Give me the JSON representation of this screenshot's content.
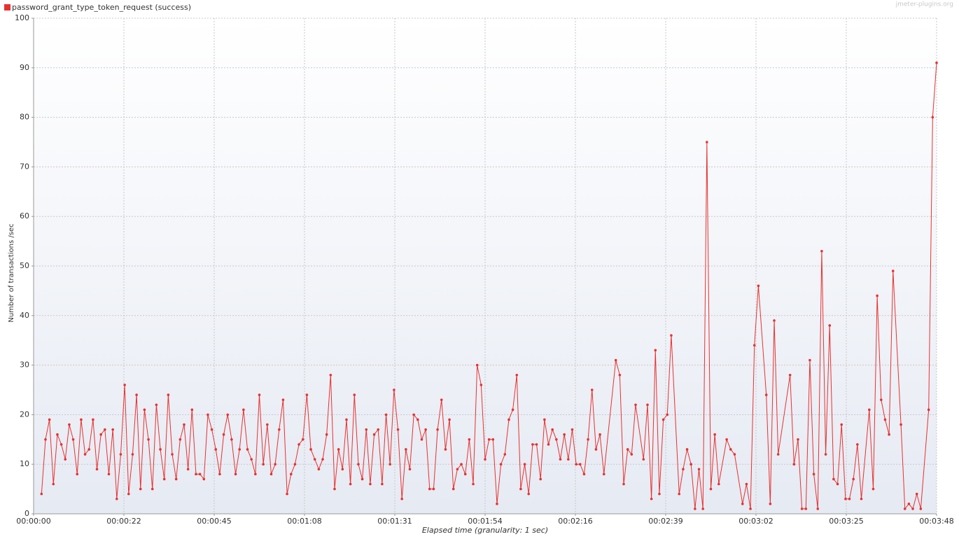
{
  "chart_data": {
    "type": "line",
    "legend_label": "password_grant_type_token_request (success)",
    "watermark": "jmeter-plugins.org",
    "ylabel": "Number of transactions /sec",
    "xlabel": "Elapsed time (granularity: 1 sec)",
    "grid": true,
    "xlim": [
      0,
      228
    ],
    "ylim": [
      0,
      100
    ],
    "yticks": [
      0,
      10,
      20,
      30,
      40,
      50,
      60,
      70,
      80,
      90,
      100
    ],
    "xticks": [
      {
        "value": 0,
        "label": "00:00:00"
      },
      {
        "value": 22.8,
        "label": "00:00:22"
      },
      {
        "value": 45.6,
        "label": "00:00:45"
      },
      {
        "value": 68.4,
        "label": "00:01:08"
      },
      {
        "value": 91.2,
        "label": "00:01:31"
      },
      {
        "value": 114,
        "label": "00:01:54"
      },
      {
        "value": 136.8,
        "label": "00:02:16"
      },
      {
        "value": 159.6,
        "label": "00:02:39"
      },
      {
        "value": 182.4,
        "label": "00:03:02"
      },
      {
        "value": 205.2,
        "label": "00:03:25"
      },
      {
        "value": 228,
        "label": "00:03:48"
      }
    ],
    "x": [
      2,
      3,
      4,
      5,
      6,
      7,
      8,
      9,
      10,
      11,
      12,
      13,
      14,
      15,
      16,
      17,
      18,
      19,
      20,
      21,
      22,
      23,
      24,
      25,
      26,
      27,
      28,
      29,
      30,
      31,
      32,
      33,
      34,
      35,
      36,
      37,
      38,
      39,
      40,
      41,
      42,
      43,
      44,
      45,
      46,
      47,
      48,
      49,
      50,
      51,
      52,
      53,
      54,
      55,
      56,
      57,
      58,
      59,
      60,
      61,
      62,
      63,
      64,
      65,
      66,
      67,
      68,
      69,
      70,
      71,
      72,
      73,
      74,
      75,
      76,
      77,
      78,
      79,
      80,
      81,
      82,
      83,
      84,
      85,
      86,
      87,
      88,
      89,
      90,
      91,
      92,
      93,
      94,
      95,
      96,
      97,
      98,
      99,
      100,
      101,
      102,
      103,
      104,
      105,
      106,
      107,
      108,
      109,
      110,
      111,
      112,
      113,
      114,
      115,
      116,
      117,
      118,
      119,
      120,
      121,
      122,
      123,
      124,
      125,
      126,
      127,
      128,
      129,
      130,
      131,
      132,
      133,
      134,
      135,
      136,
      137,
      138,
      139,
      140,
      141,
      142,
      143,
      144,
      147,
      148,
      149,
      150,
      151,
      152,
      154,
      155,
      156,
      157,
      158,
      159,
      160,
      161,
      163,
      164,
      165,
      166,
      167,
      168,
      169,
      170,
      171,
      172,
      173,
      175,
      176,
      177,
      179,
      180,
      181,
      182,
      183,
      185,
      186,
      187,
      188,
      191,
      192,
      193,
      194,
      195,
      196,
      197,
      198,
      199,
      200,
      201,
      202,
      203,
      204,
      205,
      206,
      207,
      208,
      209,
      211,
      212,
      213,
      214,
      215,
      216,
      217,
      219,
      220,
      221,
      222,
      223,
      224,
      226,
      227,
      228
    ],
    "series": [
      {
        "name": "password_grant_type_token_request (success)",
        "color": "#e8312f",
        "values": [
          4,
          15,
          19,
          6,
          16,
          14,
          11,
          18,
          15,
          8,
          19,
          12,
          13,
          19,
          9,
          16,
          17,
          8,
          17,
          3,
          12,
          26,
          4,
          12,
          24,
          5,
          21,
          15,
          5,
          22,
          13,
          7,
          24,
          12,
          7,
          15,
          18,
          9,
          21,
          8,
          8,
          7,
          20,
          17,
          13,
          8,
          16,
          20,
          15,
          8,
          13,
          21,
          13,
          11,
          8,
          24,
          10,
          18,
          8,
          10,
          17,
          23,
          4,
          8,
          10,
          14,
          15,
          24,
          13,
          11,
          9,
          11,
          16,
          28,
          5,
          13,
          9,
          19,
          6,
          24,
          10,
          7,
          17,
          6,
          16,
          17,
          6,
          20,
          10,
          25,
          17,
          3,
          13,
          9,
          20,
          19,
          15,
          17,
          5,
          5,
          17,
          23,
          13,
          19,
          5,
          9,
          10,
          8,
          15,
          6,
          30,
          26,
          11,
          15,
          15,
          2,
          10,
          12,
          19,
          21,
          28,
          5,
          10,
          4,
          14,
          14,
          7,
          19,
          14,
          17,
          15,
          11,
          16,
          11,
          17,
          10,
          10,
          8,
          15,
          25,
          13,
          16,
          8,
          31,
          28,
          6,
          13,
          12,
          22,
          11,
          22,
          3,
          33,
          4,
          19,
          20,
          36,
          4,
          9,
          13,
          10,
          1,
          9,
          1,
          75,
          5,
          16,
          6,
          15,
          13,
          12,
          2,
          6,
          1,
          34,
          46,
          24,
          2,
          39,
          12,
          28,
          10,
          15,
          1,
          1,
          31,
          8,
          1,
          53,
          12,
          38,
          7,
          6,
          18,
          3,
          3,
          7,
          14,
          3,
          21,
          5,
          44,
          23,
          19,
          16,
          49,
          18,
          1,
          2,
          1,
          4,
          1,
          21,
          80,
          91
        ]
      }
    ]
  }
}
